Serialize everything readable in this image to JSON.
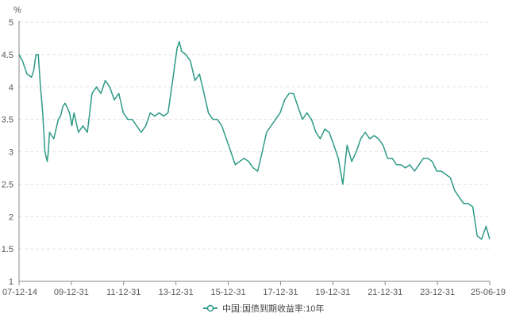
{
  "chart_data": {
    "type": "line",
    "unit_label": "%",
    "ylim": [
      1,
      5
    ],
    "yticks": [
      1,
      1.5,
      2,
      2.5,
      3,
      3.5,
      4,
      4.5,
      5
    ],
    "xticks": [
      "07-12-14",
      "09-12-31",
      "11-12-31",
      "13-12-31",
      "15-12-31",
      "17-12-31",
      "19-12-31",
      "21-12-31",
      "23-12-31",
      "25-06-19"
    ],
    "grid": true,
    "legend_position": "bottom-center",
    "colors": {
      "series": "#2e9a87",
      "grid": "#e2e2e2",
      "axis": "#888888"
    },
    "series": [
      {
        "name": "中国:国债到期收益率:10年",
        "x": [
          "2007-12-14",
          "2008-01-31",
          "2008-03-31",
          "2008-05-31",
          "2008-06-30",
          "2008-07-31",
          "2008-08-31",
          "2008-09-30",
          "2008-10-31",
          "2008-11-30",
          "2008-12-31",
          "2009-01-15",
          "2009-01-31",
          "2009-02-28",
          "2009-03-31",
          "2009-04-30",
          "2009-05-31",
          "2009-06-30",
          "2009-07-31",
          "2009-08-31",
          "2009-10-31",
          "2009-11-30",
          "2009-12-31",
          "2010-02-28",
          "2010-04-30",
          "2010-06-30",
          "2010-08-31",
          "2010-10-31",
          "2010-12-31",
          "2011-02-28",
          "2011-04-30",
          "2011-06-30",
          "2011-08-31",
          "2011-10-31",
          "2011-12-31",
          "2012-02-28",
          "2012-04-30",
          "2012-06-30",
          "2012-08-31",
          "2012-10-31",
          "2012-12-31",
          "2013-02-28",
          "2013-04-30",
          "2013-06-30",
          "2013-08-31",
          "2013-10-31",
          "2013-11-30",
          "2013-12-31",
          "2014-02-28",
          "2014-04-30",
          "2014-06-30",
          "2014-08-31",
          "2014-10-31",
          "2014-12-31",
          "2015-02-28",
          "2015-04-30",
          "2015-06-30",
          "2015-08-31",
          "2015-10-31",
          "2015-12-31",
          "2016-02-28",
          "2016-04-30",
          "2016-06-30",
          "2016-08-31",
          "2016-10-31",
          "2016-12-31",
          "2017-02-28",
          "2017-04-30",
          "2017-06-30",
          "2017-08-31",
          "2017-10-31",
          "2017-12-31",
          "2018-02-28",
          "2018-04-30",
          "2018-06-30",
          "2018-08-31",
          "2018-10-31",
          "2018-12-31",
          "2019-02-28",
          "2019-04-30",
          "2019-06-30",
          "2019-08-31",
          "2019-10-31",
          "2019-12-31",
          "2020-02-28",
          "2020-04-30",
          "2020-06-30",
          "2020-08-31",
          "2020-10-31",
          "2020-12-31",
          "2021-02-28",
          "2021-04-30",
          "2021-06-30",
          "2021-08-31",
          "2021-10-31",
          "2021-12-31",
          "2022-02-28",
          "2022-04-30",
          "2022-06-30",
          "2022-08-31",
          "2022-10-31",
          "2022-12-31",
          "2023-02-28",
          "2023-04-30",
          "2023-06-30",
          "2023-08-31",
          "2023-10-31",
          "2023-12-31",
          "2024-02-29",
          "2024-04-30",
          "2024-06-30",
          "2024-08-31",
          "2024-10-31",
          "2024-12-31",
          "2025-02-28",
          "2025-04-30",
          "2025-06-19"
        ],
        "y": [
          4.5,
          4.4,
          4.2,
          4.15,
          4.25,
          4.5,
          4.5,
          4.0,
          3.6,
          3.0,
          2.85,
          3.0,
          3.3,
          3.25,
          3.2,
          3.35,
          3.5,
          3.55,
          3.7,
          3.75,
          3.6,
          3.4,
          3.6,
          3.3,
          3.4,
          3.3,
          3.9,
          4.0,
          3.9,
          4.1,
          4.0,
          3.8,
          3.9,
          3.6,
          3.5,
          3.5,
          3.4,
          3.3,
          3.4,
          3.6,
          3.55,
          3.6,
          3.55,
          3.6,
          4.1,
          4.6,
          4.7,
          4.55,
          4.5,
          4.4,
          4.1,
          4.2,
          3.9,
          3.6,
          3.5,
          3.5,
          3.4,
          3.2,
          3.0,
          2.8,
          2.85,
          2.9,
          2.85,
          2.75,
          2.7,
          3.0,
          3.3,
          3.4,
          3.5,
          3.6,
          3.8,
          3.9,
          3.9,
          3.7,
          3.5,
          3.6,
          3.5,
          3.3,
          3.2,
          3.35,
          3.3,
          3.1,
          2.9,
          2.5,
          3.1,
          2.85,
          3.0,
          3.2,
          3.3,
          3.2,
          3.25,
          3.2,
          3.1,
          2.9,
          2.9,
          2.8,
          2.8,
          2.75,
          2.8,
          2.7,
          2.8,
          2.9,
          2.9,
          2.85,
          2.7,
          2.7,
          2.65,
          2.6,
          2.4,
          2.3,
          2.2,
          2.2,
          2.15,
          1.7,
          1.65,
          1.85,
          1.65
        ]
      }
    ]
  }
}
